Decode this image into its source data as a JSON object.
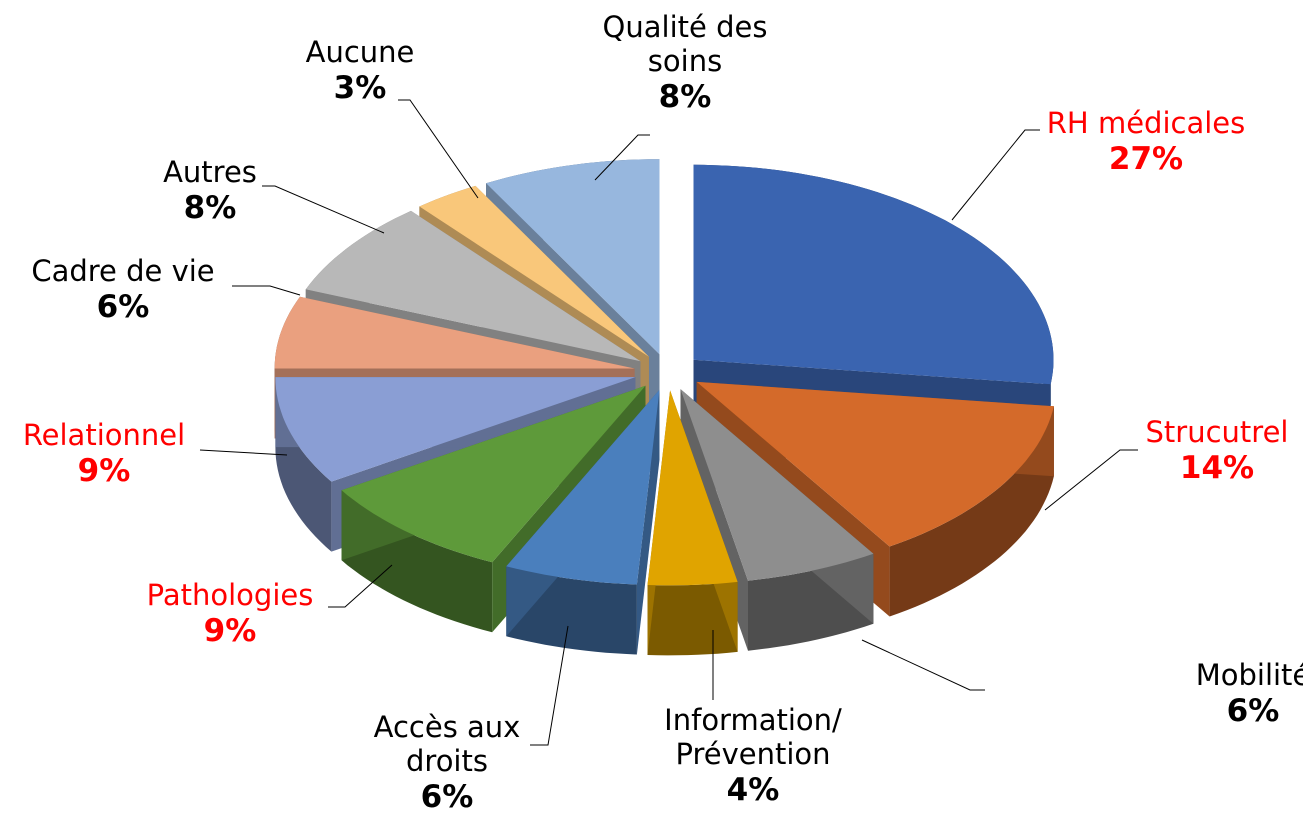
{
  "chart_data": {
    "type": "pie3d",
    "categories": [
      "RH médicales",
      "Strucutrel",
      "Mobilité",
      "Information/ Prévention",
      "Accès aux droits",
      "Pathologies",
      "Relationnel",
      "Cadre de vie",
      "Autres",
      "Aucune",
      "Qualité des soins"
    ],
    "values": [
      27,
      14,
      6,
      4,
      6,
      9,
      9,
      6,
      8,
      3,
      8
    ],
    "value_labels": [
      "27%",
      "14%",
      "6%",
      "4%",
      "6%",
      "9%",
      "9%",
      "6%",
      "8%",
      "3%",
      "8%"
    ],
    "colors": [
      "#3a64b0",
      "#d46a2a",
      "#8e8e8e",
      "#e0a400",
      "#4a7fbd",
      "#5e9a3a",
      "#8a9ed4",
      "#eaa07f",
      "#b8b8b8",
      "#f9c77a",
      "#97b7de"
    ],
    "label_colors": [
      "#ff0000",
      "#ff0000",
      "#000000",
      "#000000",
      "#000000",
      "#ff0000",
      "#ff0000",
      "#000000",
      "#000000",
      "#000000",
      "#000000"
    ]
  }
}
